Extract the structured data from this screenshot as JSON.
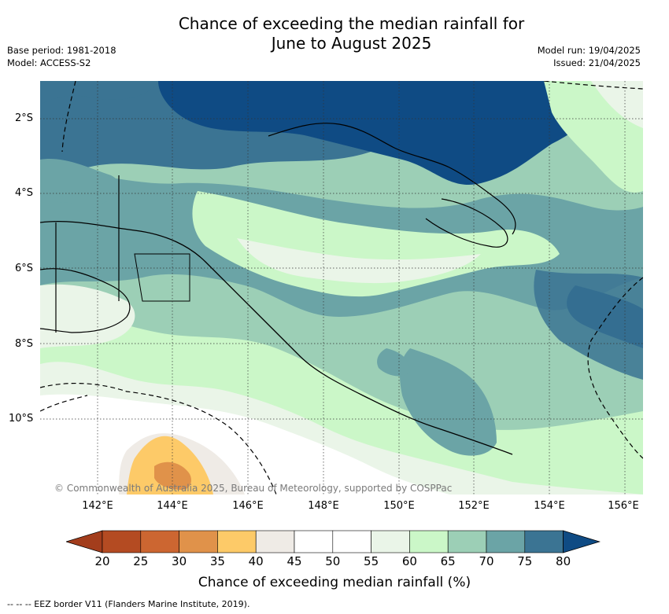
{
  "title_line1": "Chance of exceeding the median rainfall for",
  "title_line2": "June to August 2025",
  "base_period": "Base period: 1981-2018",
  "model": "Model: ACCESS-S2",
  "model_run": "Model run: 19/04/2025",
  "issued": "Issued: 21/04/2025",
  "copyright": "© Commonwealth of Australia 2025, Bureau of Meteorology, supported by COSPPac",
  "lat_labels": [
    "2°S",
    "4°S",
    "6°S",
    "8°S",
    "10°S"
  ],
  "lon_labels": [
    "142°E",
    "144°E",
    "146°E",
    "148°E",
    "150°E",
    "152°E",
    "154°E",
    "156°E"
  ],
  "colorbar": {
    "ticks": [
      "20",
      "25",
      "30",
      "35",
      "40",
      "45",
      "50",
      "55",
      "60",
      "65",
      "70",
      "75",
      "80"
    ],
    "label": "Chance of exceeding median rainfall (%)",
    "colors": [
      "#a33d1c",
      "#b44b22",
      "#cc6631",
      "#e0924a",
      "#fdca68",
      "#efebe6",
      "#ffffff",
      "#ffffff",
      "#eaf5e8",
      "#cbf7c8",
      "#9ccfb6",
      "#6ba4a6",
      "#3b7493",
      "#0f4b84"
    ]
  },
  "footnote": "--  --  -- EEZ border V11 (Flanders Marine Institute, 2019)."
}
